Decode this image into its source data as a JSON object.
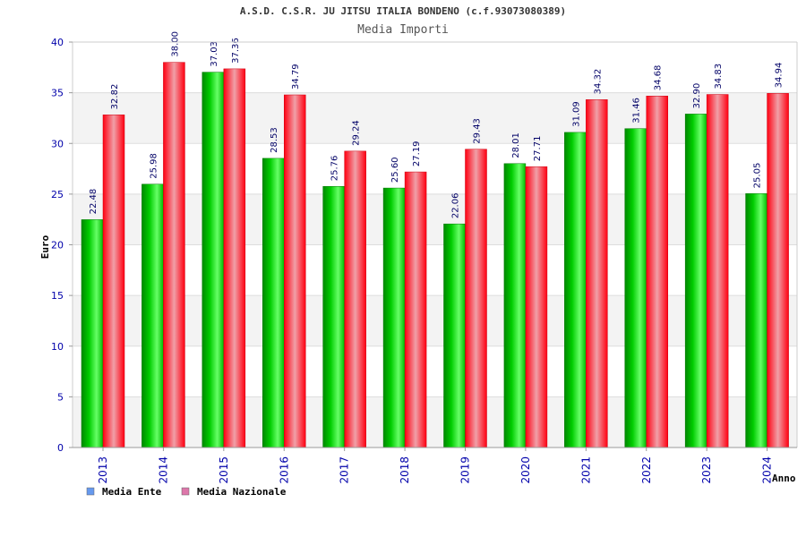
{
  "chart_data": {
    "type": "bar",
    "title": "A.S.D. C.S.R. JU JITSU ITALIA BONDENO (c.f.93073080389)",
    "subtitle": "Media Importi",
    "xlabel": "Anno",
    "ylabel": "Euro",
    "ylim": [
      0,
      40
    ],
    "yticks": [
      0,
      5,
      10,
      15,
      20,
      25,
      30,
      35,
      40
    ],
    "grid": true,
    "legend_position": "bottom-left",
    "categories": [
      "2013",
      "2014",
      "2015",
      "2016",
      "2017",
      "2018",
      "2019",
      "2020",
      "2021",
      "2022",
      "2023",
      "2024"
    ],
    "series": [
      {
        "name": "Media Ente",
        "color": "#00cc00",
        "legend_color": "#6699ee",
        "values": [
          22.48,
          25.98,
          37.03,
          28.53,
          25.76,
          25.6,
          22.06,
          28.01,
          31.09,
          31.46,
          32.9,
          25.05
        ],
        "labels": [
          "22.48",
          "25.98",
          "37.03",
          "28.53",
          "25.76",
          "25.60",
          "22.06",
          "28.01",
          "31.09",
          "31.46",
          "32.90",
          "25.05"
        ]
      },
      {
        "name": "Media Nazionale",
        "color": "#ee1122",
        "legend_color": "#dd77aa",
        "values": [
          32.82,
          38.0,
          37.36,
          34.79,
          29.24,
          27.19,
          29.43,
          27.71,
          34.32,
          34.68,
          34.83,
          34.94
        ],
        "labels": [
          "32.82",
          "38.00",
          "37.36",
          "34.79",
          "29.24",
          "27.19",
          "29.43",
          "27.71",
          "34.32",
          "34.68",
          "34.83",
          "34.94"
        ]
      }
    ]
  }
}
